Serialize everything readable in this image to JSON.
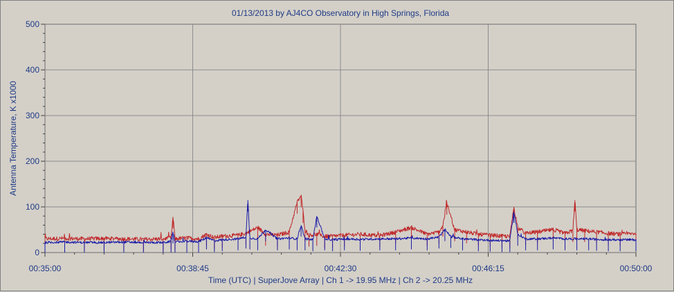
{
  "chart_data": {
    "type": "line",
    "title": "01/13/2013  by  AJ4CO Observatory  in  High Springs, Florida",
    "ylabel": "Antenna Temperature, K x1000",
    "xlabel": "Time (UTC)  |  SuperJove Array  |  Ch 1 -> 19.95 MHz  |  Ch 2 -> 20.25 MHz",
    "ylim": [
      0,
      500
    ],
    "y_ticks": [
      0,
      100,
      200,
      300,
      400,
      500
    ],
    "y_tick_labels": [
      "0",
      "100",
      "200",
      "300",
      "400",
      "500"
    ],
    "x_range_minutes": [
      35,
      50
    ],
    "x_ticks_minutes": [
      35,
      38.75,
      42.5,
      46.25,
      50
    ],
    "x_tick_labels": [
      "00:35:00",
      "00:38:45",
      "00:42:30",
      "00:46:15",
      "00:50:00"
    ],
    "grid": true,
    "colors": {
      "ch1": "#c0282a",
      "ch2": "#1a1aa6",
      "text": "#1f3a86",
      "grid": "#8c8c8c",
      "plot_bg": "#d4d0c8"
    },
    "series": [
      {
        "color": "#c0282a",
        "x": [
          35.0,
          35.5,
          36.0,
          36.5,
          37.0,
          37.5,
          38.0,
          38.2,
          38.25,
          38.3,
          38.6,
          38.9,
          39.1,
          39.3,
          39.5,
          39.9,
          40.1,
          40.4,
          40.6,
          40.9,
          41.2,
          41.4,
          41.5,
          41.55,
          41.6,
          41.7,
          41.9,
          42.1,
          42.3,
          42.6,
          43.0,
          43.5,
          43.9,
          44.3,
          44.7,
          45.0,
          45.1,
          45.2,
          45.4,
          45.7,
          46.0,
          46.3,
          46.6,
          46.8,
          46.9,
          47.0,
          47.2,
          47.5,
          47.9,
          48.2,
          48.4,
          48.45,
          48.5,
          48.7,
          49.0,
          49.3,
          49.6,
          50.0
        ],
        "y": [
          30,
          31,
          30,
          31,
          30,
          29,
          30,
          32,
          78,
          30,
          32,
          30,
          40,
          33,
          36,
          38,
          42,
          55,
          40,
          38,
          45,
          110,
          125,
          90,
          50,
          38,
          40,
          35,
          36,
          38,
          40,
          37,
          45,
          55,
          40,
          45,
          60,
          108,
          50,
          45,
          40,
          38,
          36,
          35,
          100,
          55,
          42,
          45,
          50,
          42,
          48,
          115,
          50,
          48,
          45,
          42,
          40,
          42
        ]
      },
      {
        "color": "#1a1aa6",
        "x": [
          35.0,
          35.5,
          36.0,
          36.5,
          37.0,
          37.5,
          38.0,
          38.2,
          38.25,
          38.3,
          38.6,
          38.9,
          39.1,
          39.3,
          39.5,
          39.9,
          40.1,
          40.15,
          40.2,
          40.4,
          40.6,
          40.9,
          41.2,
          41.4,
          41.5,
          41.6,
          41.8,
          41.9,
          42.1,
          42.3,
          42.6,
          43.0,
          43.5,
          43.9,
          44.3,
          44.7,
          45.0,
          45.15,
          45.3,
          45.6,
          46.0,
          46.3,
          46.6,
          46.8,
          46.9,
          47.0,
          47.2,
          47.5,
          47.9,
          48.2,
          48.5,
          48.8,
          49.0,
          49.3,
          49.6,
          50.0
        ],
        "y": [
          22,
          23,
          22,
          22,
          23,
          22,
          22,
          24,
          45,
          23,
          25,
          24,
          32,
          26,
          28,
          30,
          34,
          115,
          32,
          30,
          50,
          30,
          32,
          30,
          60,
          30,
          28,
          80,
          30,
          28,
          30,
          29,
          30,
          30,
          32,
          30,
          34,
          50,
          35,
          30,
          28,
          27,
          26,
          26,
          90,
          40,
          30,
          30,
          32,
          30,
          30,
          30,
          29,
          28,
          28,
          28
        ]
      }
    ]
  }
}
